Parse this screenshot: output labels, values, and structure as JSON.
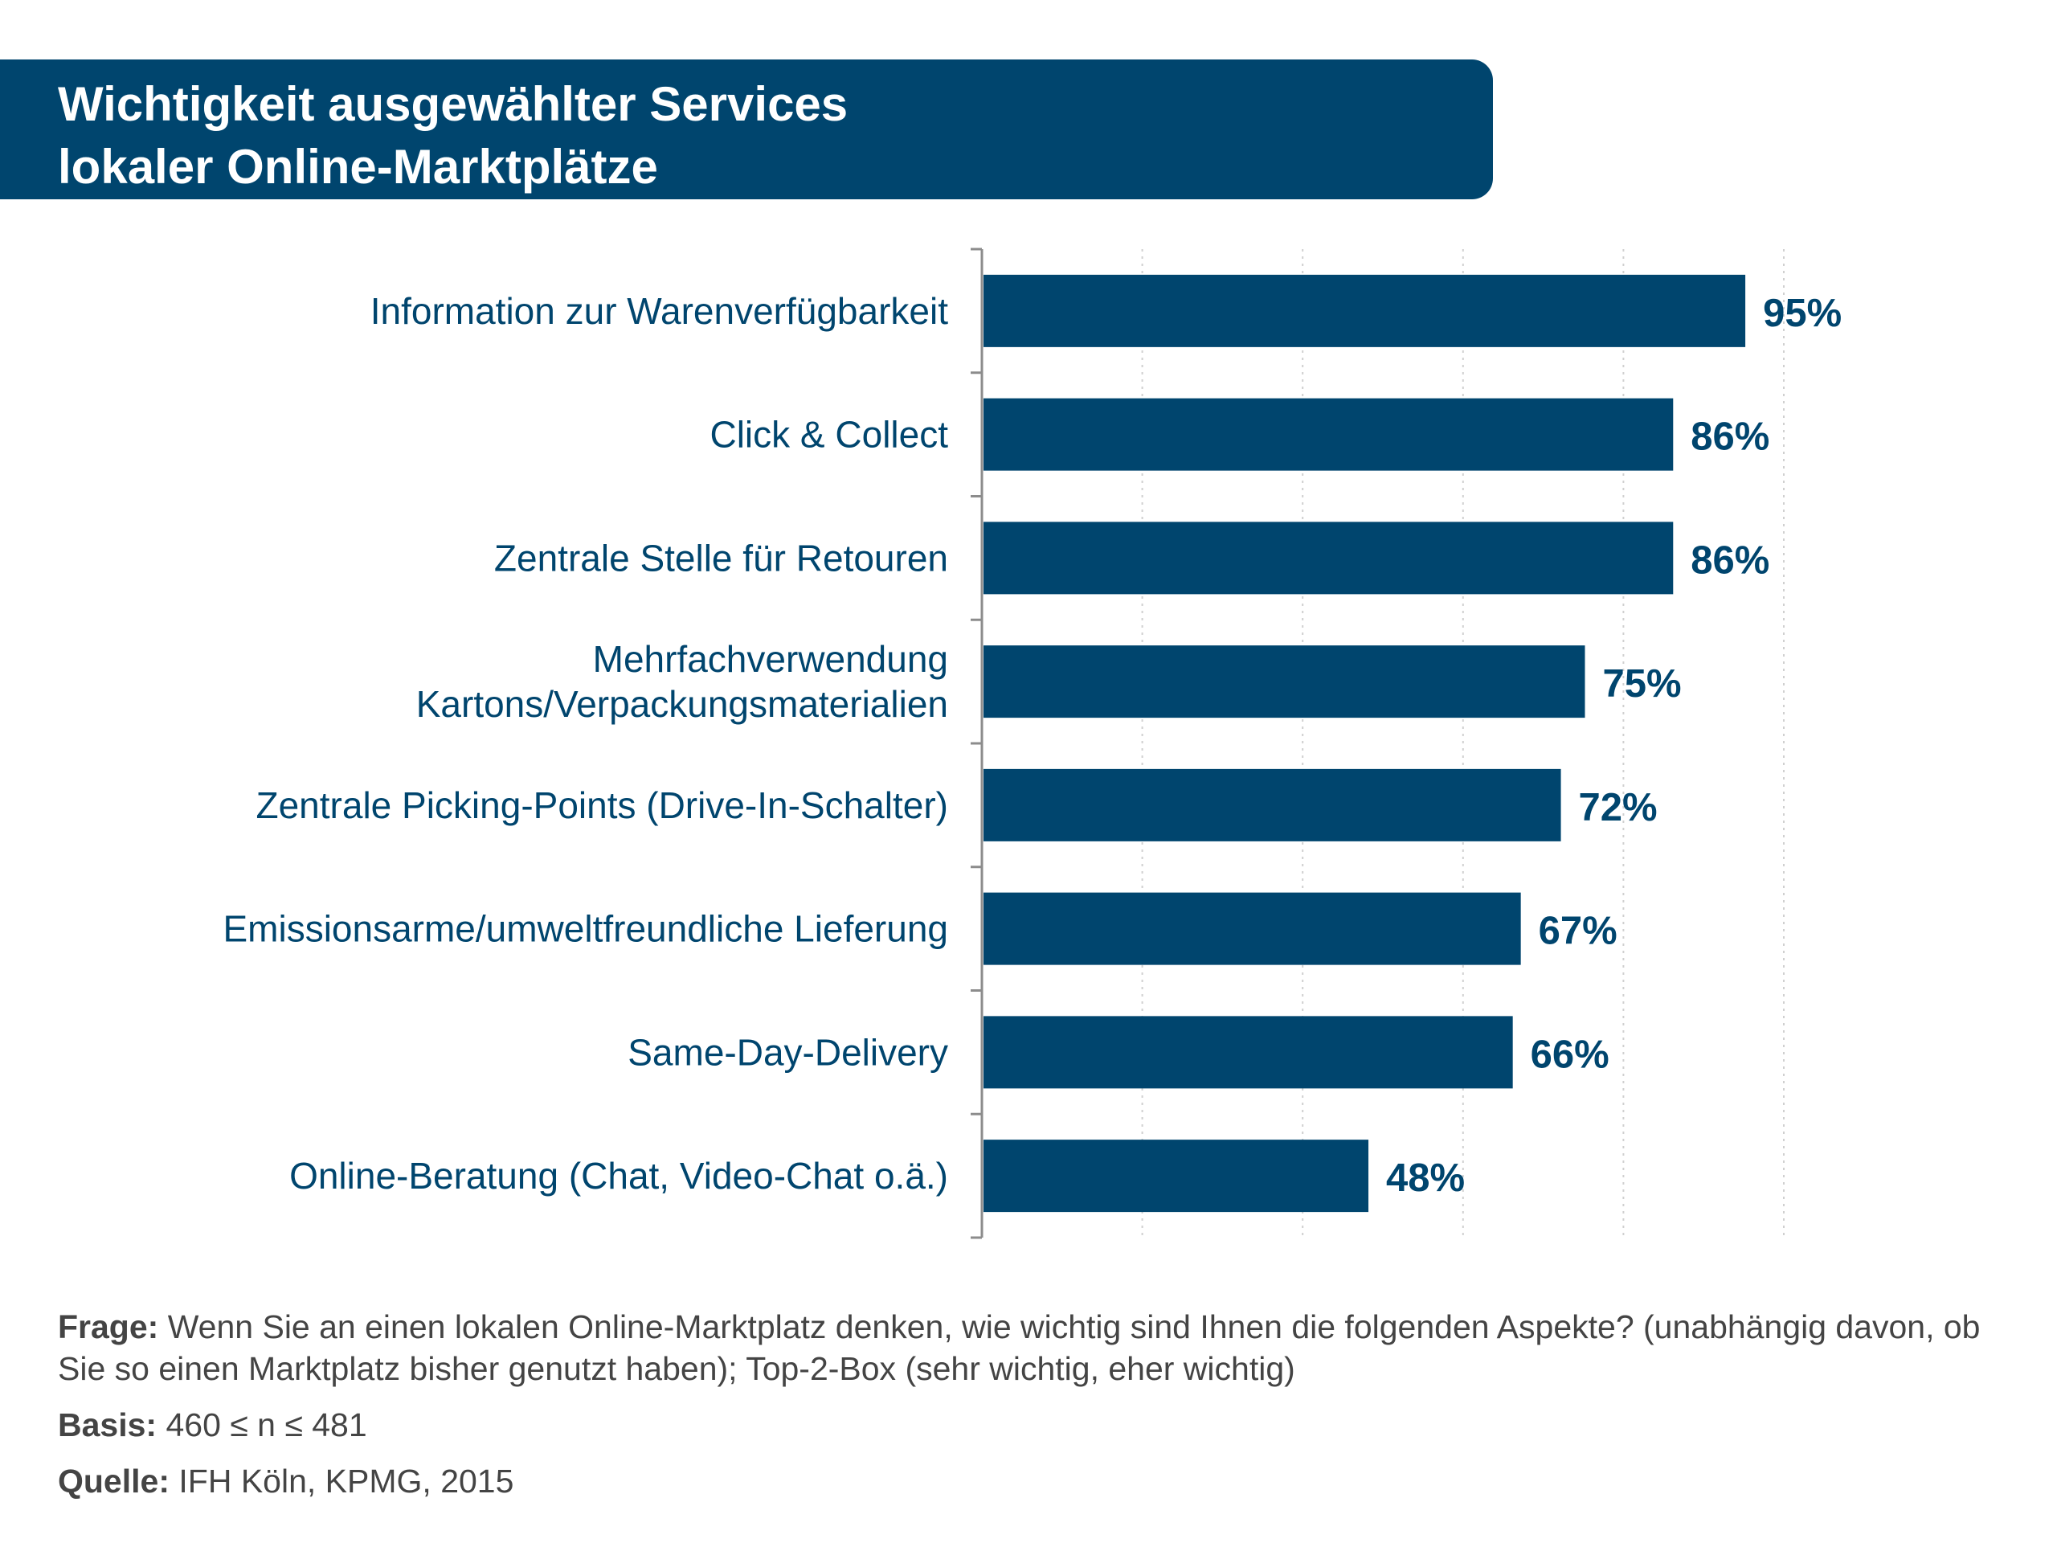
{
  "title": {
    "line1": "Wichtigkeit ausgewählter Services",
    "line2": "lokaler Online-Marktplätze"
  },
  "colors": {
    "accent": "#00456e",
    "text": "#444444"
  },
  "chart_data": {
    "type": "bar",
    "orientation": "horizontal",
    "categories": [
      [
        "Information zur Warenverfügbarkeit"
      ],
      [
        "Click & Collect"
      ],
      [
        "Zentrale Stelle für Retouren"
      ],
      [
        "Mehrfachverwendung",
        "Kartons/Verpackungsmaterialien"
      ],
      [
        "Zentrale Picking-Points (Drive-In-Schalter)"
      ],
      [
        "Emissionsarme/umweltfreundliche Lieferung"
      ],
      [
        "Same-Day-Delivery"
      ],
      [
        "Online-Beratung (Chat, Video-Chat o.ä.)"
      ]
    ],
    "values": [
      95,
      86,
      86,
      75,
      72,
      67,
      66,
      48
    ],
    "value_labels": [
      "95%",
      "86%",
      "86%",
      "75%",
      "72%",
      "67%",
      "66%",
      "48%"
    ],
    "xlim": [
      0,
      100
    ],
    "grid": true,
    "grid_step": 20,
    "legend": "none"
  },
  "footnotes": {
    "frage_label": "Frage:",
    "frage_text": "Wenn Sie an einen lokalen Online-Marktplatz denken, wie wichtig sind Ihnen die folgenden Aspekte? (unabhängig davon, ob Sie so einen Marktplatz bisher genutzt haben); Top-2-Box (sehr wichtig, eher wichtig)",
    "basis_label": "Basis:",
    "basis_text": "460 ≤ n ≤ 481",
    "quelle_label": "Quelle:",
    "quelle_text": "IFH Köln, KPMG, 2015"
  }
}
